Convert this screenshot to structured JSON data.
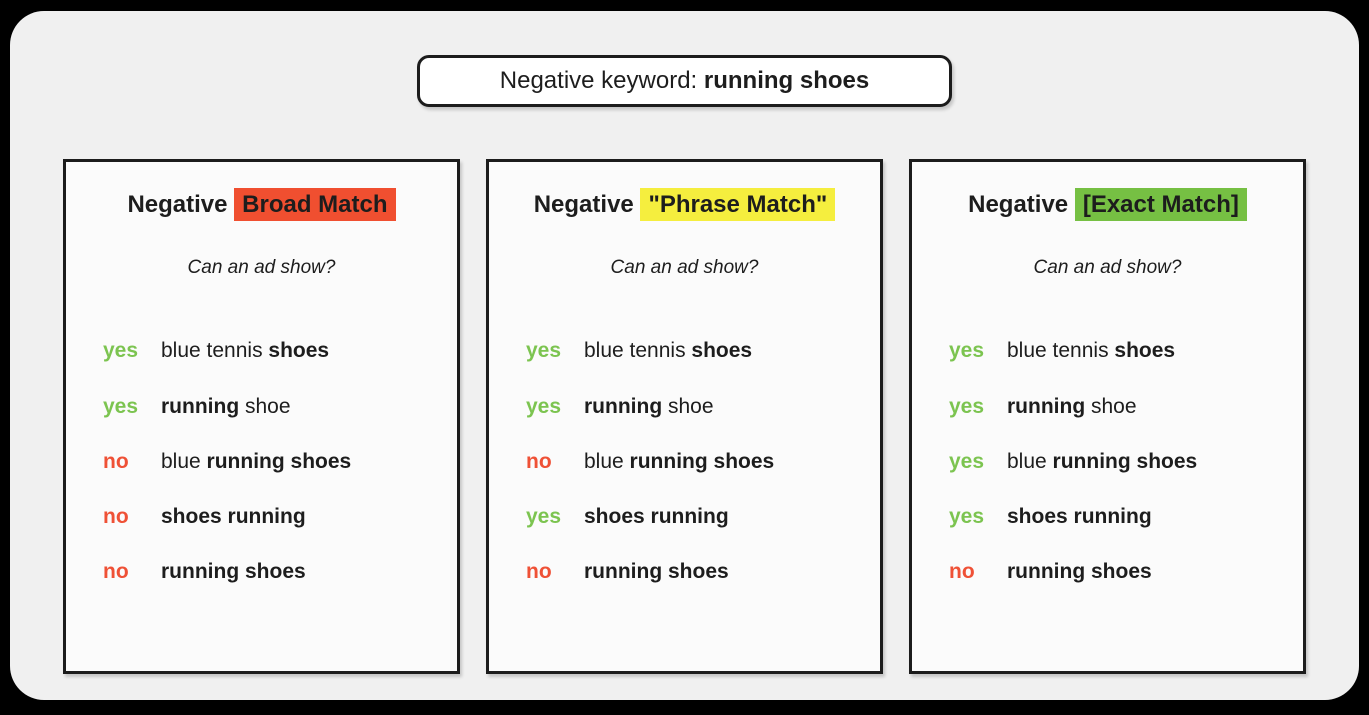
{
  "colors": {
    "yes": "#7cc450",
    "no": "#ef5136",
    "broad_highlight": "#f04f30",
    "phrase_highlight": "#f5ee3e",
    "exact_highlight": "#76c043",
    "text": "#1d1d1d",
    "canvas_bg": "#f0f0f0",
    "panel_bg": "#fbfbfb"
  },
  "header": {
    "label": "Negative keyword: ",
    "keyword": "running shoes"
  },
  "panels": [
    {
      "title_prefix": "Negative ",
      "title_highlight": "Broad Match",
      "highlight_color": "#f04f30",
      "subtitle": "Can an ad show?",
      "rows": [
        {
          "answer": "yes",
          "pre": "blue tennis ",
          "bold": "shoes",
          "post": ""
        },
        {
          "answer": "yes",
          "pre": "",
          "bold": "running",
          "post": " shoe"
        },
        {
          "answer": "no",
          "pre": "blue ",
          "bold": "running shoes",
          "post": ""
        },
        {
          "answer": "no",
          "pre": "",
          "bold": "shoes running",
          "post": ""
        },
        {
          "answer": "no",
          "pre": "",
          "bold": "running shoes",
          "post": ""
        }
      ]
    },
    {
      "title_prefix": "Negative ",
      "title_highlight": "\"Phrase Match\"",
      "highlight_color": "#f5ee3e",
      "subtitle": "Can an ad show?",
      "rows": [
        {
          "answer": "yes",
          "pre": "blue tennis ",
          "bold": "shoes",
          "post": ""
        },
        {
          "answer": "yes",
          "pre": "",
          "bold": "running",
          "post": " shoe"
        },
        {
          "answer": "no",
          "pre": "blue ",
          "bold": "running shoes",
          "post": ""
        },
        {
          "answer": "yes",
          "pre": "",
          "bold": "shoes running",
          "post": ""
        },
        {
          "answer": "no",
          "pre": "",
          "bold": "running shoes",
          "post": ""
        }
      ]
    },
    {
      "title_prefix": "Negative ",
      "title_highlight": "[Exact Match]",
      "highlight_color": "#76c043",
      "subtitle": "Can an ad show?",
      "rows": [
        {
          "answer": "yes",
          "pre": "blue tennis ",
          "bold": "shoes",
          "post": ""
        },
        {
          "answer": "yes",
          "pre": "",
          "bold": "running",
          "post": " shoe"
        },
        {
          "answer": "yes",
          "pre": "blue ",
          "bold": "running shoes",
          "post": ""
        },
        {
          "answer": "yes",
          "pre": "",
          "bold": "shoes running",
          "post": ""
        },
        {
          "answer": "no",
          "pre": "",
          "bold": "running shoes",
          "post": ""
        }
      ]
    }
  ]
}
